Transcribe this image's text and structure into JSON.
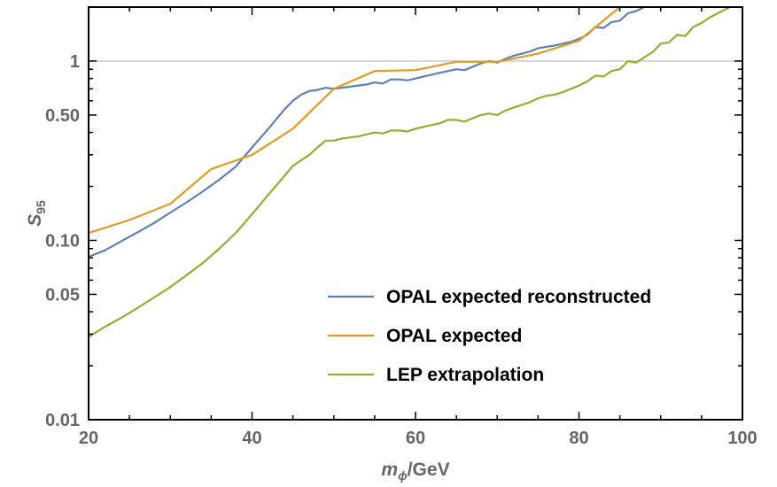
{
  "chart_data": {
    "type": "line",
    "xlabel": {
      "main": "m",
      "sub": "ϕ",
      "suffix": "/GeV"
    },
    "ylabel": {
      "main": "S",
      "sub": "95"
    },
    "xlim": [
      20,
      100
    ],
    "ylim": [
      0.01,
      2.0
    ],
    "yscale": "log",
    "x_ticks": [
      20,
      40,
      60,
      80,
      100
    ],
    "x_tick_labels": [
      "20",
      "40",
      "60",
      "80",
      "100"
    ],
    "y_ticks": [
      0.01,
      0.05,
      0.1,
      0.5,
      1
    ],
    "y_tick_labels": [
      "0.01",
      "0.05",
      "0.10",
      "0.50",
      "1"
    ],
    "reference_line": {
      "y": 1,
      "color": "#c8c8c8"
    },
    "legend_position": "bottom-right",
    "series": [
      {
        "name": "OPAL expected reconstructed",
        "color": "#5e81b5",
        "points": [
          [
            20,
            0.081
          ],
          [
            22,
            0.088
          ],
          [
            24,
            0.099
          ],
          [
            26,
            0.111
          ],
          [
            28,
            0.125
          ],
          [
            30,
            0.143
          ],
          [
            32,
            0.163
          ],
          [
            34,
            0.188
          ],
          [
            36,
            0.218
          ],
          [
            38,
            0.258
          ],
          [
            40,
            0.33
          ],
          [
            42,
            0.42
          ],
          [
            44,
            0.54
          ],
          [
            45,
            0.6
          ],
          [
            46,
            0.65
          ],
          [
            47,
            0.68
          ],
          [
            48,
            0.69
          ],
          [
            49,
            0.71
          ],
          [
            50,
            0.7
          ],
          [
            51,
            0.71
          ],
          [
            52,
            0.72
          ],
          [
            53,
            0.73
          ],
          [
            54,
            0.74
          ],
          [
            55,
            0.76
          ],
          [
            56,
            0.75
          ],
          [
            57,
            0.79
          ],
          [
            58,
            0.79
          ],
          [
            59,
            0.78
          ],
          [
            60,
            0.8
          ],
          [
            61,
            0.82
          ],
          [
            62,
            0.84
          ],
          [
            63,
            0.86
          ],
          [
            64,
            0.88
          ],
          [
            65,
            0.9
          ],
          [
            66,
            0.89
          ],
          [
            67,
            0.93
          ],
          [
            68,
            0.97
          ],
          [
            69,
            1.0
          ],
          [
            70,
            0.98
          ],
          [
            71,
            1.03
          ],
          [
            72,
            1.07
          ],
          [
            73,
            1.1
          ],
          [
            74,
            1.13
          ],
          [
            75,
            1.18
          ],
          [
            76,
            1.2
          ],
          [
            77,
            1.22
          ],
          [
            78,
            1.25
          ],
          [
            79,
            1.28
          ],
          [
            80,
            1.33
          ],
          [
            81,
            1.4
          ],
          [
            82,
            1.55
          ],
          [
            83,
            1.53
          ],
          [
            84,
            1.65
          ],
          [
            85,
            1.68
          ],
          [
            86,
            1.85
          ],
          [
            87,
            1.9
          ],
          [
            88,
            2.0
          ]
        ]
      },
      {
        "name": "OPAL expected",
        "color": "#e19c24",
        "points": [
          [
            20,
            0.11
          ],
          [
            25,
            0.13
          ],
          [
            30,
            0.16
          ],
          [
            35,
            0.25
          ],
          [
            40,
            0.3
          ],
          [
            45,
            0.42
          ],
          [
            50,
            0.7
          ],
          [
            55,
            0.88
          ],
          [
            60,
            0.89
          ],
          [
            65,
            0.99
          ],
          [
            70,
            0.99
          ],
          [
            75,
            1.1
          ],
          [
            80,
            1.3
          ],
          [
            85,
            2.0
          ]
        ]
      },
      {
        "name": "LEP extrapolation",
        "color": "#8fb032",
        "points": [
          [
            20,
            0.029
          ],
          [
            22,
            0.033
          ],
          [
            24,
            0.037
          ],
          [
            26,
            0.042
          ],
          [
            28,
            0.048
          ],
          [
            30,
            0.055
          ],
          [
            32,
            0.064
          ],
          [
            34,
            0.075
          ],
          [
            36,
            0.09
          ],
          [
            38,
            0.11
          ],
          [
            40,
            0.14
          ],
          [
            42,
            0.18
          ],
          [
            44,
            0.23
          ],
          [
            45,
            0.26
          ],
          [
            46,
            0.28
          ],
          [
            47,
            0.3
          ],
          [
            48,
            0.33
          ],
          [
            49,
            0.36
          ],
          [
            50,
            0.36
          ],
          [
            51,
            0.37
          ],
          [
            52,
            0.375
          ],
          [
            53,
            0.38
          ],
          [
            54,
            0.39
          ],
          [
            55,
            0.4
          ],
          [
            56,
            0.395
          ],
          [
            57,
            0.41
          ],
          [
            58,
            0.41
          ],
          [
            59,
            0.405
          ],
          [
            60,
            0.42
          ],
          [
            61,
            0.43
          ],
          [
            62,
            0.44
          ],
          [
            63,
            0.45
          ],
          [
            64,
            0.47
          ],
          [
            65,
            0.47
          ],
          [
            66,
            0.46
          ],
          [
            67,
            0.48
          ],
          [
            68,
            0.5
          ],
          [
            69,
            0.51
          ],
          [
            70,
            0.5
          ],
          [
            71,
            0.53
          ],
          [
            72,
            0.55
          ],
          [
            73,
            0.57
          ],
          [
            74,
            0.59
          ],
          [
            75,
            0.62
          ],
          [
            76,
            0.64
          ],
          [
            77,
            0.65
          ],
          [
            78,
            0.67
          ],
          [
            79,
            0.7
          ],
          [
            80,
            0.73
          ],
          [
            81,
            0.77
          ],
          [
            82,
            0.83
          ],
          [
            83,
            0.82
          ],
          [
            84,
            0.88
          ],
          [
            85,
            0.9
          ],
          [
            86,
            1.0
          ],
          [
            87,
            0.98
          ],
          [
            88,
            1.05
          ],
          [
            89,
            1.12
          ],
          [
            90,
            1.25
          ],
          [
            91,
            1.27
          ],
          [
            92,
            1.4
          ],
          [
            93,
            1.38
          ],
          [
            94,
            1.55
          ],
          [
            95,
            1.63
          ],
          [
            96,
            1.75
          ],
          [
            97,
            1.85
          ],
          [
            98,
            1.95
          ],
          [
            98.5,
            2.0
          ]
        ]
      }
    ]
  }
}
